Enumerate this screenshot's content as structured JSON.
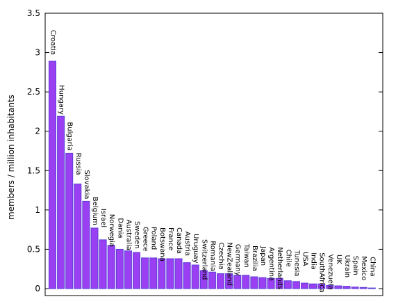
{
  "chart_data": {
    "type": "bar",
    "ylabel": "members / million inhabitants",
    "ylim": [
      0,
      3.5
    ],
    "yticks": [
      "0",
      "0.5",
      "1",
      "1.5",
      "2",
      "2.5",
      "3",
      "3.5"
    ],
    "grid": false,
    "bar_color": "#9b3ff2",
    "bar_edge_color": "#5a3fd6",
    "categories": [
      "Croatia",
      "Hungary",
      "Bulgaria",
      "Russia",
      "Slovakia",
      "Belgium",
      "Israel",
      "Norwegia",
      "Dania",
      "Australia",
      "Sweden",
      "Greece",
      "Poland",
      "Botswana",
      "France",
      "Canada",
      "Austria",
      "Uruguay",
      "Switzerland",
      "Romania",
      "Czechia",
      "NewZealand",
      "Germany",
      "Taiwan",
      "Brazilia",
      "Japan",
      "Argentina",
      "Netherlands",
      "Chile",
      "Tunesia",
      "USA",
      "India",
      "SouthAfrica",
      "Venezuela",
      "UK",
      "Ukrain",
      "Spain",
      "Mexico",
      "China"
    ],
    "values": [
      2.89,
      2.19,
      1.72,
      1.33,
      1.11,
      0.77,
      0.62,
      0.55,
      0.5,
      0.48,
      0.46,
      0.39,
      0.39,
      0.38,
      0.38,
      0.38,
      0.33,
      0.3,
      0.23,
      0.21,
      0.19,
      0.19,
      0.17,
      0.17,
      0.15,
      0.14,
      0.13,
      0.13,
      0.1,
      0.09,
      0.07,
      0.06,
      0.06,
      0.04,
      0.035,
      0.03,
      0.02,
      0.015,
      0.008
    ]
  }
}
